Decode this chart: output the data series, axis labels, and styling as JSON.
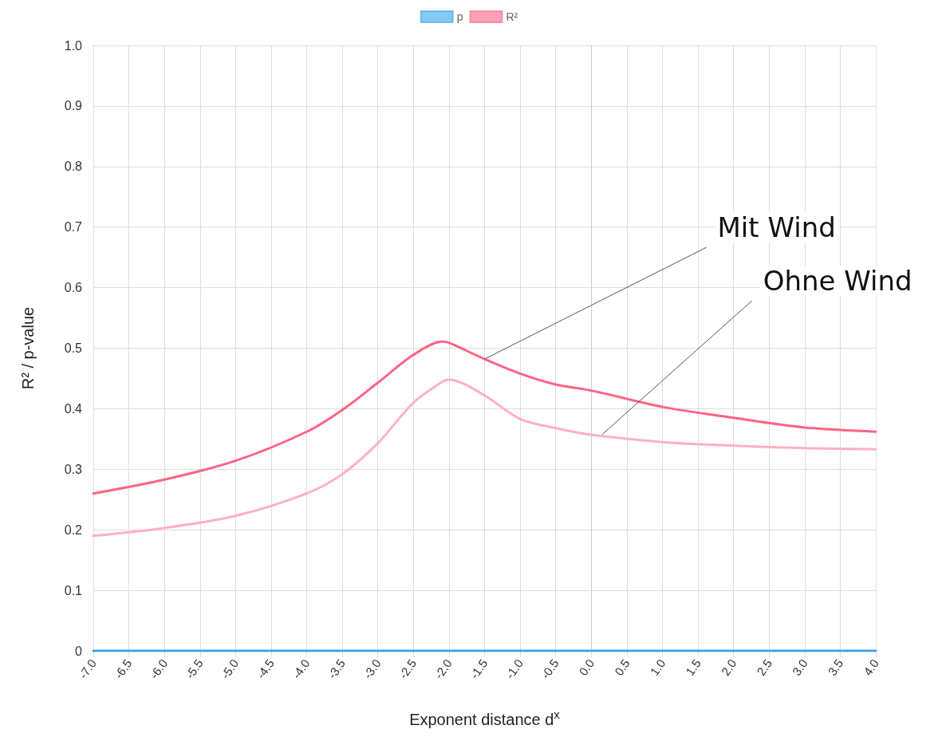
{
  "chart_data": {
    "type": "line",
    "xlabel": "Exponent distance d$^{x}$",
    "ylabel": "R² / p-value",
    "x": [
      -7,
      -6,
      -5,
      -4,
      -3.5,
      -3,
      -2.5,
      -2.1,
      -2,
      -1.5,
      -1,
      -0.5,
      0,
      1,
      2,
      3,
      4
    ],
    "series": [
      {
        "name": "p",
        "color": "#36a2eb",
        "values": [
          0,
          0,
          0,
          0,
          0,
          0,
          0,
          0,
          0,
          0,
          0,
          0,
          0,
          0,
          0,
          0,
          0
        ]
      },
      {
        "name": "R²",
        "color": "#ff6384",
        "values": [
          0.26,
          0.283,
          0.314,
          0.362,
          0.398,
          0.443,
          0.489,
          0.511,
          0.509,
          0.482,
          0.458,
          0.44,
          0.43,
          0.403,
          0.385,
          0.369,
          0.362
        ]
      },
      {
        "color": "#ffb1c1",
        "values": [
          0.19,
          0.203,
          0.223,
          0.26,
          0.292,
          0.343,
          0.41,
          0.444,
          0.448,
          0.422,
          0.383,
          0.368,
          0.357,
          0.345,
          0.339,
          0.335,
          0.333
        ]
      }
    ],
    "xlim": [
      -7,
      4
    ],
    "xticks": [
      {
        "value": -7,
        "label": "-7.0"
      },
      {
        "value": -6.5,
        "label": "-6.5"
      },
      {
        "value": -6,
        "label": "-6.0"
      },
      {
        "value": -5.5,
        "label": "-5.5"
      },
      {
        "value": -5,
        "label": "-5.0"
      },
      {
        "value": -4.5,
        "label": "-4.5"
      },
      {
        "value": -4,
        "label": "-4.0"
      },
      {
        "value": -3.5,
        "label": "-3.5"
      },
      {
        "value": -3,
        "label": "-3.0"
      },
      {
        "value": -2.5,
        "label": "-2.5"
      },
      {
        "value": -2,
        "label": "-2.0"
      },
      {
        "value": -1.5,
        "label": "-1.5"
      },
      {
        "value": -1,
        "label": "-1.0"
      },
      {
        "value": -0.5,
        "label": "-0.5"
      },
      {
        "value": 0,
        "label": "0.0"
      },
      {
        "value": 0.5,
        "label": "0.5"
      },
      {
        "value": 1,
        "label": "1.0"
      },
      {
        "value": 1.5,
        "label": "1.5"
      },
      {
        "value": 2,
        "label": "2.0"
      },
      {
        "value": 2.5,
        "label": "2.5"
      },
      {
        "value": 3,
        "label": "3.0"
      },
      {
        "value": 3.5,
        "label": "3.5"
      },
      {
        "value": 4,
        "label": "4.0"
      }
    ],
    "ylim": [
      0,
      1
    ],
    "yticks": [
      0,
      0.1,
      0.2,
      0.3,
      0.4,
      0.5,
      0.6,
      0.7,
      0.8,
      0.9,
      {
        "value": 1,
        "label": "1.0"
      }
    ],
    "annotations": [
      {
        "text": "Mit Wind",
        "x": -1.5,
        "y": 0.482
      },
      {
        "text": "Ohne Wind",
        "x": 0.15,
        "y": 0.357
      }
    ],
    "grid": true,
    "legend": "top",
    "marker": "none",
    "line_style": "solid"
  }
}
